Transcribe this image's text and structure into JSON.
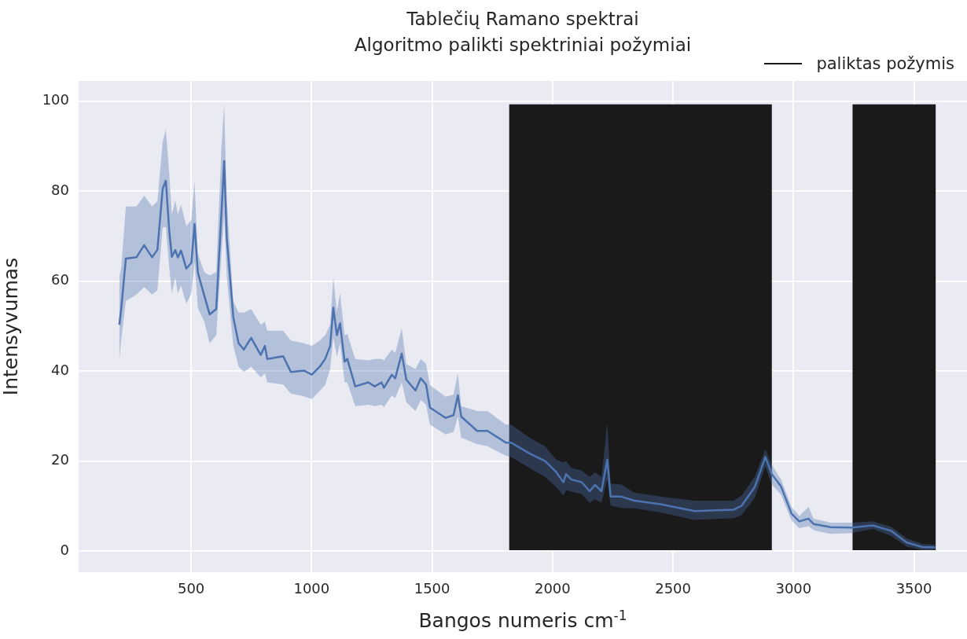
{
  "chart_data": {
    "type": "line",
    "title": "Tablečių Ramano spektrai",
    "subtitle": "Algoritmo palikti spektriniai požymiai",
    "xlabel": "Bangos numeris cm$^{-1}$",
    "ylabel": "Intensyvumas",
    "xlim": [
      33,
      3720
    ],
    "ylim": [
      -4.7,
      104.5
    ],
    "xticks": [
      500,
      1000,
      1500,
      2000,
      2500,
      3000,
      3500
    ],
    "yticks": [
      0,
      20,
      40,
      60,
      80,
      100
    ],
    "grid": true,
    "legend": "top right",
    "bands": [
      {
        "axis": "x",
        "from": 1820,
        "to": 2910,
        "label": "paliktas požymis",
        "color": "#1a1a1a"
      },
      {
        "axis": "x",
        "from": 3245,
        "to": 3590,
        "color": "#1a1a1a"
      }
    ],
    "series": [
      {
        "color": "#4c72b0",
        "x": [
          202,
          210,
          229,
          273,
          305,
          338,
          360,
          382,
          395,
          409,
          420,
          434,
          445,
          458,
          480,
          501,
          514,
          528,
          555,
          577,
          604,
          626,
          637,
          648,
          675,
          697,
          719,
          749,
          789,
          806,
          816,
          882,
          914,
          969,
          1001,
          1034,
          1056,
          1077,
          1090,
          1105,
          1118,
          1137,
          1148,
          1181,
          1235,
          1262,
          1290,
          1300,
          1333,
          1347,
          1374,
          1393,
          1431,
          1453,
          1475,
          1491,
          1556,
          1589,
          1607,
          1621,
          1687,
          1730,
          1806,
          1828,
          1904,
          1969,
          2013,
          2045,
          2056,
          2078,
          2121,
          2154,
          2176,
          2203,
          2227,
          2241,
          2285,
          2339,
          2448,
          2589,
          2752,
          2785,
          2839,
          2883,
          2910,
          2948,
          2992,
          3024,
          3062,
          3084,
          3155,
          3242,
          3329,
          3405,
          3470,
          3535,
          3588
        ],
        "values": [
          50.3,
          54,
          65,
          65.3,
          68,
          65.3,
          67,
          80.6,
          82.3,
          71.3,
          65.4,
          66.9,
          65.3,
          66.8,
          62.8,
          64.1,
          72.7,
          61.9,
          56.7,
          52.6,
          53.8,
          75.3,
          86.7,
          69.5,
          52,
          46.2,
          44.8,
          47.4,
          43.6,
          45.6,
          42.7,
          43.3,
          39.8,
          40.1,
          39.2,
          41,
          42.7,
          45.6,
          54.1,
          48,
          50.6,
          42.1,
          42.7,
          36.6,
          37.5,
          36.6,
          37.5,
          36.3,
          39.2,
          38.4,
          43.9,
          38.1,
          35.7,
          38.4,
          37,
          31.9,
          29.6,
          30.2,
          34.6,
          29.9,
          26.7,
          26.7,
          24.1,
          24.1,
          21.7,
          20,
          17.7,
          15.3,
          17.1,
          15.9,
          15.3,
          13.3,
          14.7,
          13.3,
          20.3,
          12.1,
          12.1,
          11.2,
          10.4,
          8.9,
          9.2,
          10.1,
          14.2,
          20.9,
          17.1,
          14.4,
          8.3,
          6.6,
          7.2,
          6,
          5.3,
          5.2,
          5.7,
          4.5,
          1.9,
          0.9,
          0.8
        ],
        "lower": [
          42.5,
          47,
          55.6,
          57,
          58.7,
          57,
          58,
          71.9,
          72,
          63,
          57.3,
          60.8,
          57.3,
          59,
          55,
          57.3,
          64.3,
          54,
          50.9,
          46.2,
          48,
          66,
          74.8,
          61,
          45.6,
          41,
          39.8,
          41,
          38.6,
          39.5,
          37.5,
          37,
          35,
          34.4,
          33.8,
          35.6,
          36.9,
          40.4,
          47.4,
          43.3,
          46.2,
          37.5,
          37.5,
          32.2,
          32.5,
          32.2,
          32.5,
          32,
          34.6,
          34,
          37.5,
          33.1,
          31.1,
          33.6,
          32.5,
          28.1,
          25.9,
          26.5,
          29.9,
          25.2,
          23.8,
          23.3,
          21.2,
          20.9,
          18.5,
          16.5,
          14.3,
          12.4,
          13.5,
          13.2,
          12.7,
          10.7,
          11.5,
          10.7,
          15.9,
          10.1,
          9.6,
          9.5,
          8.6,
          6.9,
          7.3,
          8,
          11.8,
          18.8,
          14.8,
          12.5,
          6.8,
          5.1,
          5.5,
          4.6,
          3.8,
          4,
          4.9,
          3.4,
          1,
          0.2,
          0.2
        ],
        "upper": [
          61,
          63,
          76.6,
          76.6,
          79,
          76.6,
          77.8,
          91,
          93.7,
          84,
          74.8,
          78,
          74.8,
          77,
          72.2,
          73.6,
          82.3,
          66,
          62,
          61.3,
          62,
          89.9,
          99.3,
          78,
          55.6,
          53,
          53,
          53.8,
          50.3,
          51,
          49,
          49,
          46.8,
          46.2,
          45.6,
          46.8,
          48,
          50.3,
          60.8,
          53.2,
          57.3,
          48,
          48.3,
          42.7,
          42.4,
          42.7,
          42.7,
          42.4,
          44.8,
          44,
          49.5,
          41.6,
          40.4,
          42.7,
          41.6,
          36.9,
          34.3,
          34.8,
          39.5,
          32.2,
          31.1,
          31.1,
          28.1,
          28.1,
          25.2,
          23.3,
          20.4,
          19.7,
          20,
          18.5,
          17.9,
          16.5,
          17.5,
          16.5,
          28.4,
          15,
          14.8,
          13,
          12.1,
          11.2,
          11.2,
          12.4,
          16.5,
          22.6,
          19.2,
          15.9,
          9.8,
          7.8,
          9.8,
          7.2,
          6.3,
          6.3,
          6.6,
          5.4,
          2.8,
          1.6,
          1.4
        ]
      }
    ]
  }
}
